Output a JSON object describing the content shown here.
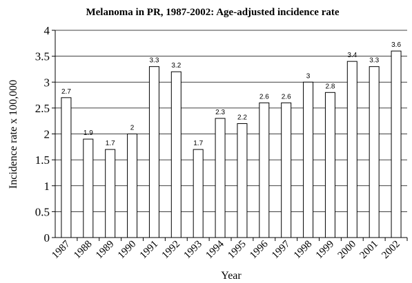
{
  "chart_data": {
    "type": "bar",
    "title": "Melanoma in PR, 1987-2002: Age-adjusted incidence rate",
    "x_label": "Year",
    "y_label": "Incidence rate x 100,000",
    "categories": [
      "1987",
      "1988",
      "1989",
      "1990",
      "1991",
      "1992",
      "1993",
      "1994",
      "1995",
      "1996",
      "1997",
      "1998",
      "1999",
      "2000",
      "2001",
      "2002"
    ],
    "values": [
      2.7,
      1.9,
      1.7,
      2,
      3.3,
      3.2,
      1.7,
      2.3,
      2.2,
      2.6,
      2.6,
      3,
      2.8,
      3.4,
      3.3,
      3.6
    ],
    "color": "#ffffff",
    "ylim": [
      0,
      4
    ],
    "yticks": [
      0,
      0.5,
      1,
      1.5,
      2,
      2.5,
      3,
      3.5,
      4
    ],
    "grid": true
  }
}
